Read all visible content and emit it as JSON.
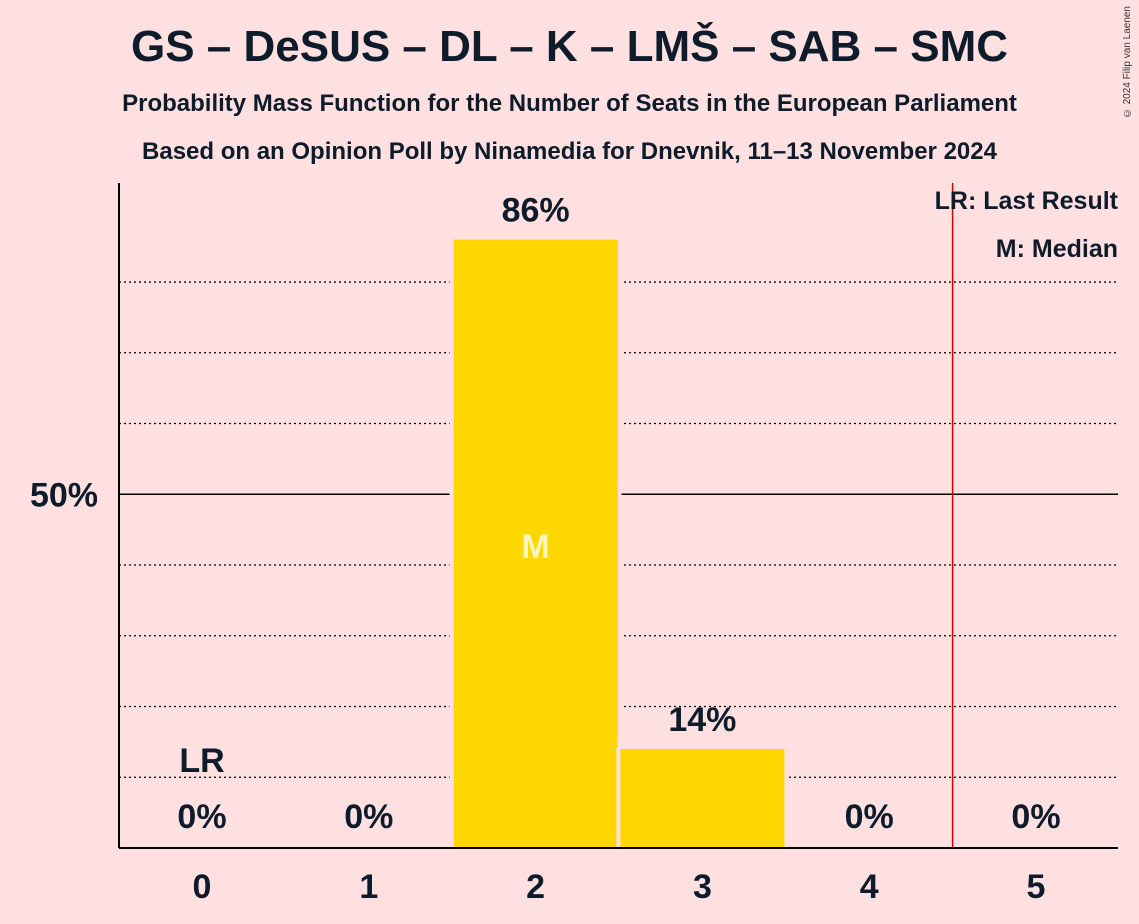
{
  "title": "GS – DeSUS – DL – K – LMŠ – SAB – SMC",
  "subtitle_1": "Probability Mass Function for the Number of Seats in the European Parliament",
  "subtitle_2": "Based on an Opinion Poll by Ninamedia for Dnevnik, 11–13 November 2024",
  "copyright": "© 2024 Filip van Laenen",
  "legend": {
    "last_result": "LR: Last Result",
    "median": "M: Median"
  },
  "colors": {
    "background": "#FFE0E0",
    "bar": "#FFD700",
    "last_result_line": "#CC0000",
    "text": "#0d1b2a"
  },
  "chart_data": {
    "type": "bar",
    "categories": [
      "0",
      "1",
      "2",
      "3",
      "4",
      "5"
    ],
    "values": [
      0,
      0,
      86,
      14,
      0,
      0
    ],
    "value_labels": [
      "0%",
      "0%",
      "86%",
      "14%",
      "0%",
      "0%"
    ],
    "ylim": [
      0,
      94
    ],
    "y_tick_labels": [
      {
        "value": 50,
        "label": "50%"
      }
    ],
    "minor_gridlines": [
      10,
      20,
      30,
      40,
      60,
      70,
      80
    ],
    "last_result": {
      "seats": 0,
      "label": "LR",
      "line_between": [
        4,
        5
      ]
    },
    "median": {
      "seats": 2,
      "label": "M"
    },
    "legend_position": "top-right"
  }
}
